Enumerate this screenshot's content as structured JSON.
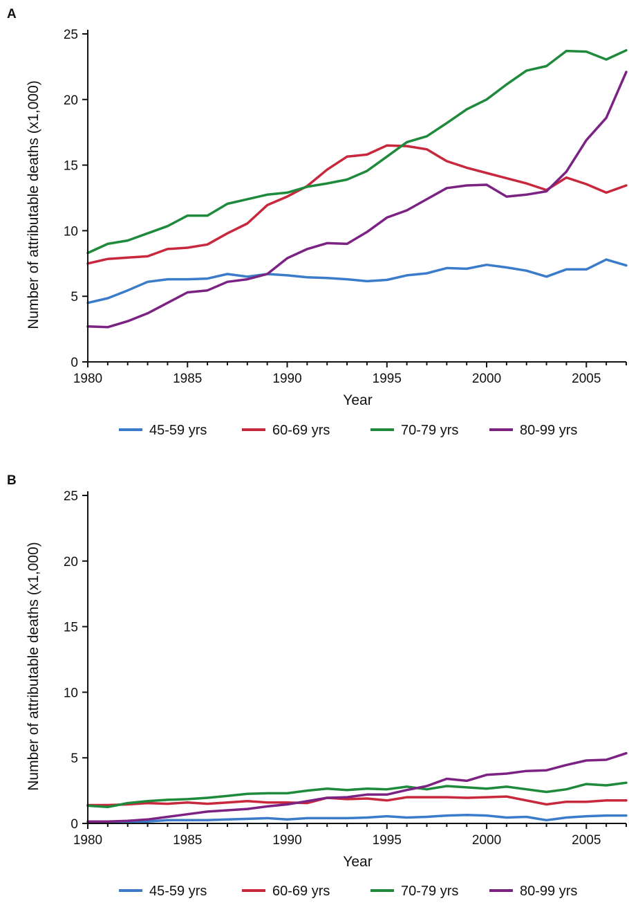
{
  "chart_data": [
    {
      "type": "line",
      "panel_label": "A",
      "xlabel": "Year",
      "ylabel": "Number of attributable deaths (x1,000)",
      "xlim": [
        1980,
        2007
      ],
      "ylim": [
        0,
        25
      ],
      "xticks": [
        1980,
        1985,
        1990,
        1995,
        2000,
        2005
      ],
      "yticks": [
        0,
        5,
        10,
        15,
        20,
        25
      ],
      "legend_position": "bottom",
      "x": [
        1980,
        1981,
        1982,
        1983,
        1984,
        1985,
        1986,
        1987,
        1988,
        1989,
        1990,
        1991,
        1992,
        1993,
        1994,
        1995,
        1996,
        1997,
        1998,
        1999,
        2000,
        2001,
        2002,
        2003,
        2004,
        2005,
        2006,
        2007
      ],
      "series": [
        {
          "name": "45-59 yrs",
          "color": "#3a7cc9",
          "values": [
            4.5,
            4.85,
            5.45,
            6.1,
            6.3,
            6.3,
            6.35,
            6.7,
            6.5,
            6.7,
            6.6,
            6.45,
            6.4,
            6.3,
            6.15,
            6.25,
            6.6,
            6.75,
            7.15,
            7.1,
            7.4,
            7.2,
            6.95,
            6.5,
            7.05,
            7.05,
            7.8,
            7.35
          ]
        },
        {
          "name": "60-69 yrs",
          "color": "#c8283c",
          "values": [
            7.5,
            7.85,
            7.95,
            8.05,
            8.6,
            8.7,
            8.95,
            9.8,
            10.55,
            11.95,
            12.6,
            13.4,
            14.65,
            15.65,
            15.8,
            16.5,
            16.45,
            16.2,
            15.3,
            14.8,
            14.4,
            14.0,
            13.6,
            13.1,
            14.05,
            13.55,
            12.9,
            13.45
          ]
        },
        {
          "name": "70-79 yrs",
          "color": "#1f8a3c",
          "values": [
            8.3,
            9.0,
            9.25,
            9.8,
            10.35,
            11.15,
            11.15,
            12.05,
            12.4,
            12.75,
            12.9,
            13.35,
            13.6,
            13.9,
            14.55,
            15.65,
            16.75,
            17.2,
            18.2,
            19.25,
            20.0,
            21.15,
            22.2,
            22.55,
            23.7,
            23.65,
            23.05,
            23.75
          ]
        },
        {
          "name": "80-99 yrs",
          "color": "#7b2283",
          "values": [
            2.7,
            2.65,
            3.1,
            3.7,
            4.5,
            5.3,
            5.45,
            6.1,
            6.3,
            6.7,
            7.9,
            8.6,
            9.05,
            9.0,
            9.9,
            11.0,
            11.55,
            12.4,
            13.25,
            13.45,
            13.5,
            12.6,
            12.75,
            13.0,
            14.5,
            16.9,
            18.6,
            22.1
          ]
        }
      ]
    },
    {
      "type": "line",
      "panel_label": "B",
      "xlabel": "Year",
      "ylabel": "Number of attributable deaths (x1,000)",
      "xlim": [
        1980,
        2007
      ],
      "ylim": [
        0,
        25
      ],
      "xticks": [
        1980,
        1985,
        1990,
        1995,
        2000,
        2005
      ],
      "yticks": [
        0,
        5,
        10,
        15,
        20,
        25
      ],
      "legend_position": "bottom",
      "x": [
        1980,
        1981,
        1982,
        1983,
        1984,
        1985,
        1986,
        1987,
        1988,
        1989,
        1990,
        1991,
        1992,
        1993,
        1994,
        1995,
        1996,
        1997,
        1998,
        1999,
        2000,
        2001,
        2002,
        2003,
        2004,
        2005,
        2006,
        2007
      ],
      "series": [
        {
          "name": "45-59 yrs",
          "color": "#3a7cc9",
          "values": [
            0.05,
            0.05,
            0.1,
            0.15,
            0.25,
            0.25,
            0.25,
            0.3,
            0.35,
            0.4,
            0.3,
            0.4,
            0.4,
            0.4,
            0.45,
            0.55,
            0.45,
            0.5,
            0.6,
            0.65,
            0.6,
            0.45,
            0.5,
            0.25,
            0.45,
            0.55,
            0.6,
            0.6
          ]
        },
        {
          "name": "60-69 yrs",
          "color": "#c8283c",
          "values": [
            1.4,
            1.4,
            1.45,
            1.55,
            1.5,
            1.6,
            1.5,
            1.6,
            1.7,
            1.6,
            1.6,
            1.55,
            1.95,
            1.85,
            1.9,
            1.75,
            2.0,
            2.0,
            2.0,
            1.95,
            2.0,
            2.05,
            1.75,
            1.45,
            1.65,
            1.65,
            1.75,
            1.75
          ]
        },
        {
          "name": "70-79 yrs",
          "color": "#1f8a3c",
          "values": [
            1.35,
            1.25,
            1.55,
            1.7,
            1.8,
            1.85,
            1.95,
            2.1,
            2.25,
            2.3,
            2.3,
            2.5,
            2.65,
            2.55,
            2.65,
            2.6,
            2.8,
            2.6,
            2.85,
            2.75,
            2.65,
            2.8,
            2.6,
            2.4,
            2.6,
            3.0,
            2.9,
            3.1
          ]
        },
        {
          "name": "80-99 yrs",
          "color": "#7b2283",
          "values": [
            0.15,
            0.15,
            0.2,
            0.3,
            0.5,
            0.7,
            0.9,
            1.0,
            1.1,
            1.3,
            1.45,
            1.7,
            1.95,
            2.0,
            2.2,
            2.2,
            2.55,
            2.85,
            3.4,
            3.25,
            3.7,
            3.8,
            4.0,
            4.05,
            4.45,
            4.8,
            4.85,
            5.35
          ]
        }
      ]
    }
  ]
}
